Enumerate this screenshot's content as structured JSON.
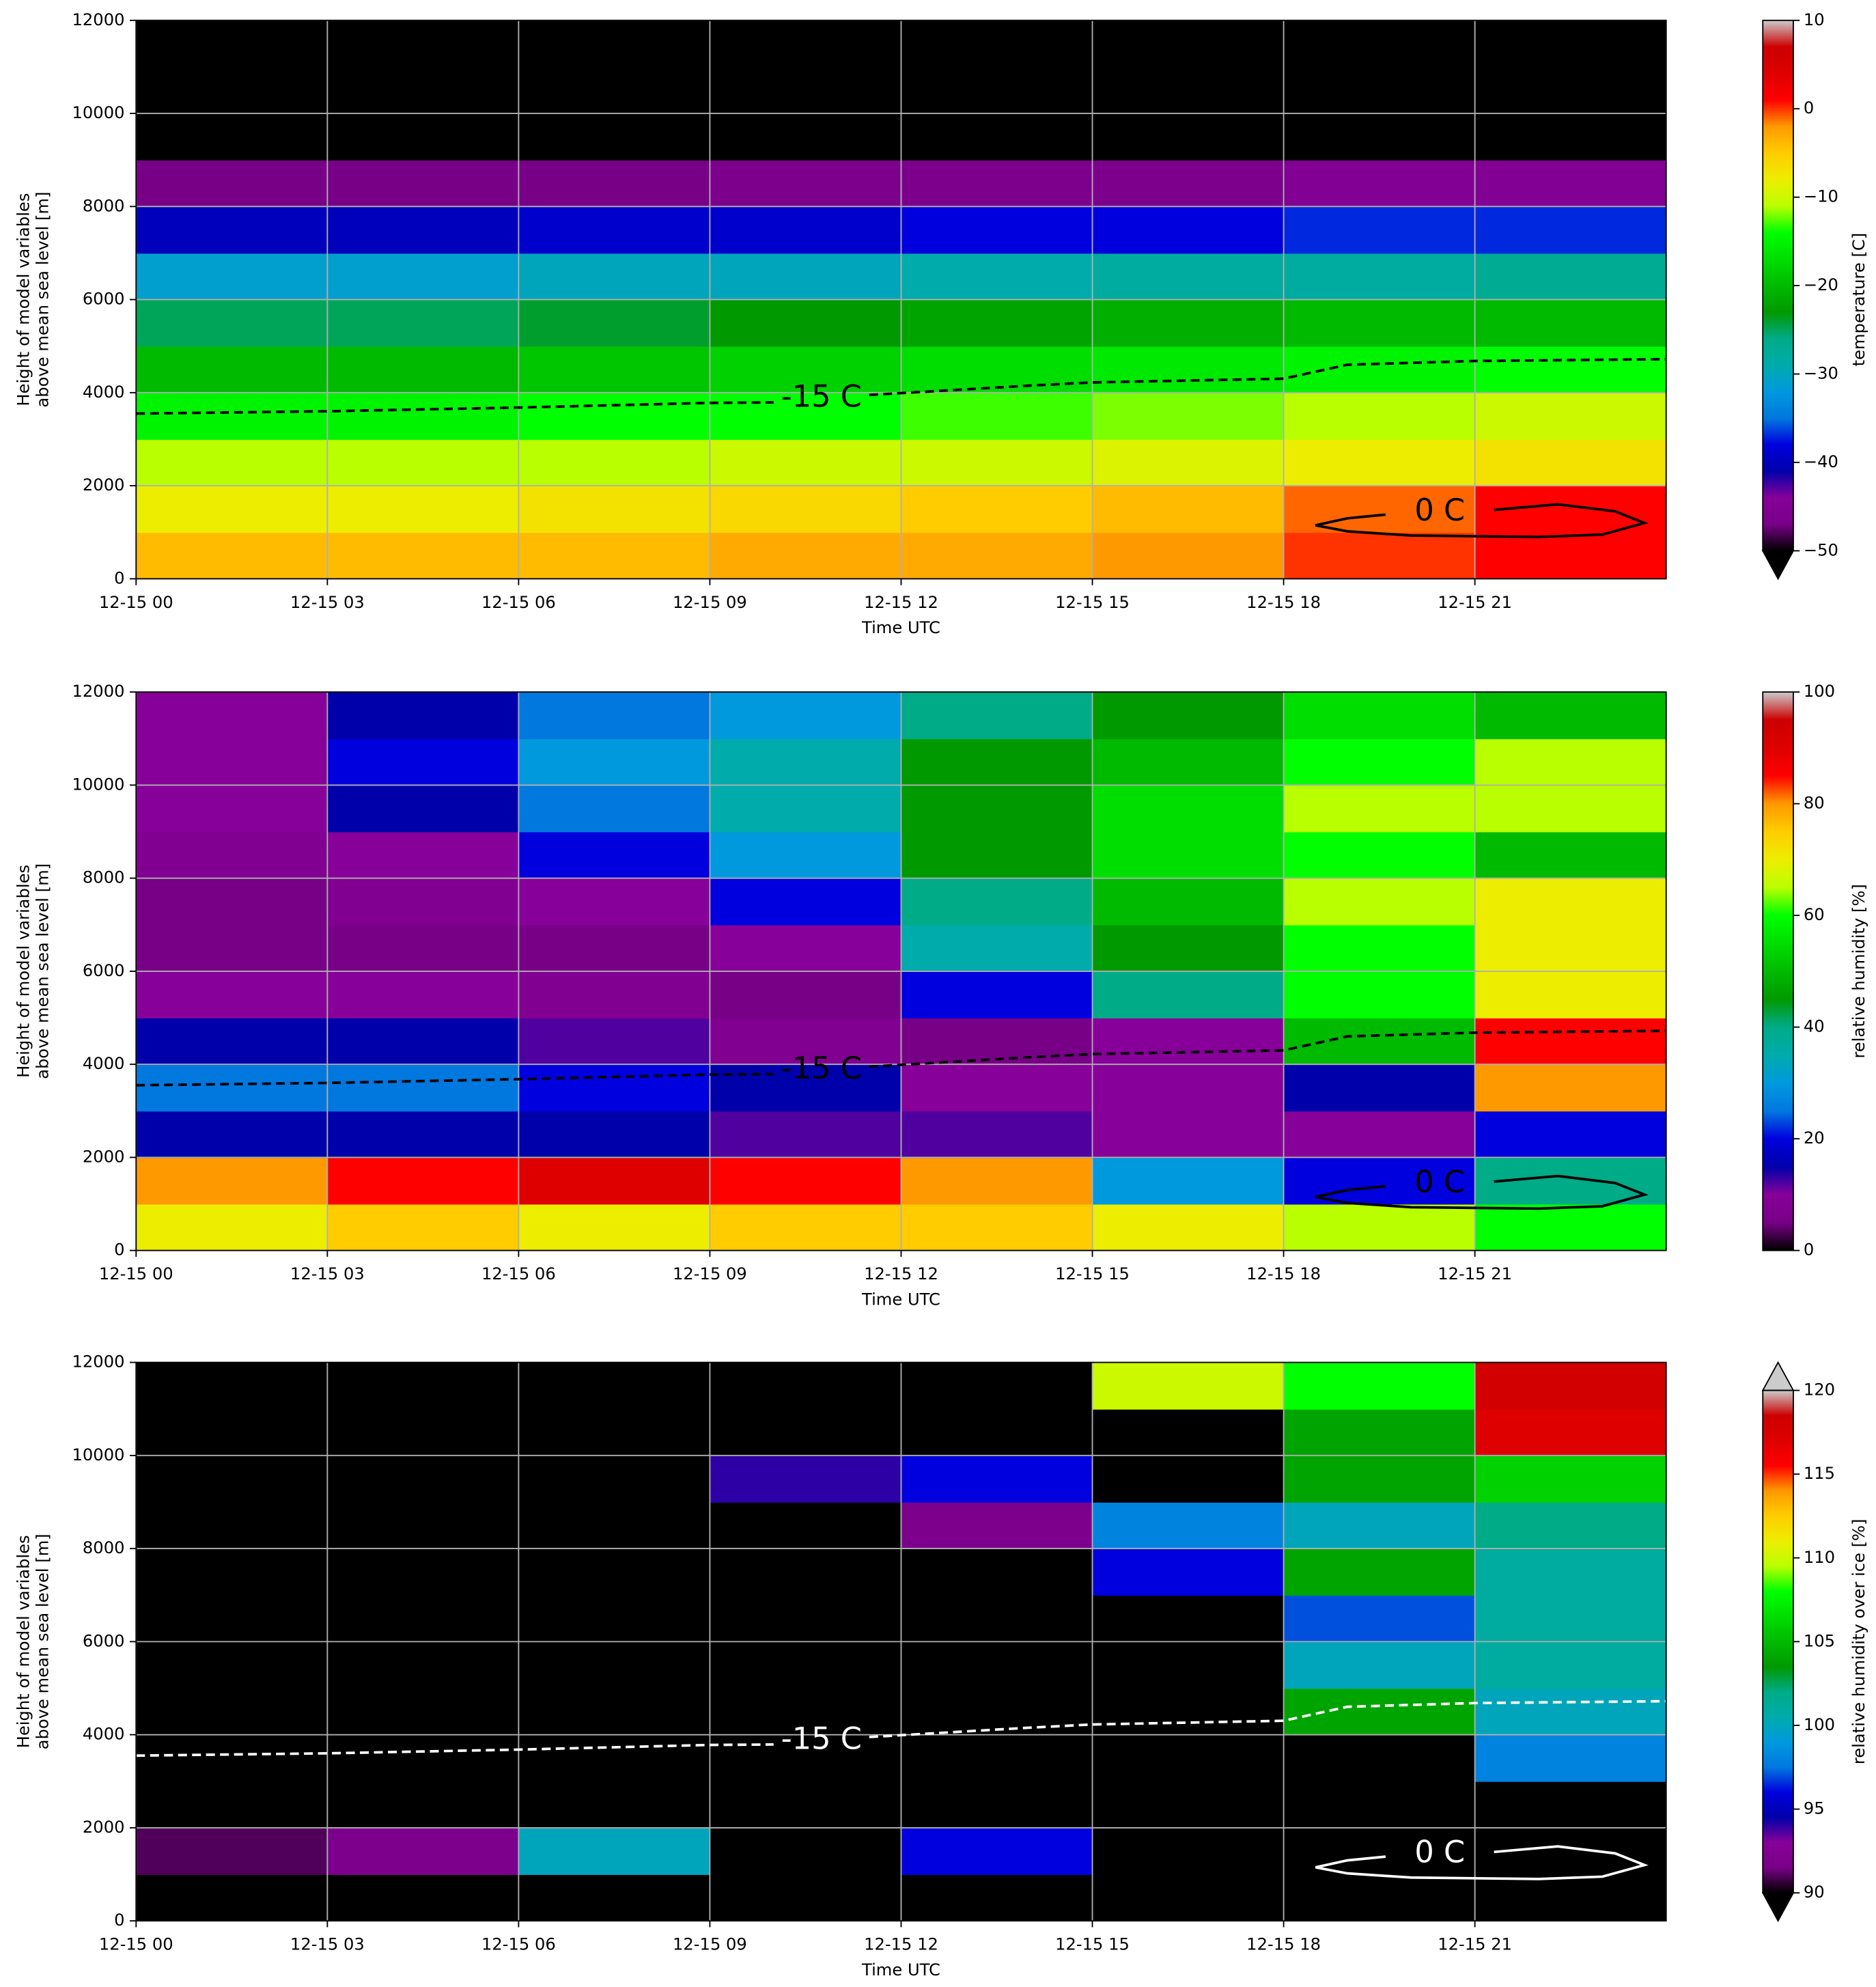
{
  "chart_data": [
    {
      "type": "heatmap",
      "xlabel": "Time UTC",
      "ylabel": [
        "Height of model variables",
        "above mean sea level [m]"
      ],
      "xlim": [
        0,
        24
      ],
      "ylim": [
        0,
        12000
      ],
      "xticks": [
        {
          "value": 0,
          "label": "12-15 00"
        },
        {
          "value": 3,
          "label": "12-15 03"
        },
        {
          "value": 6,
          "label": "12-15 06"
        },
        {
          "value": 9,
          "label": "12-15 09"
        },
        {
          "value": 12,
          "label": "12-15 12"
        },
        {
          "value": 15,
          "label": "12-15 15"
        },
        {
          "value": 18,
          "label": "12-15 18"
        },
        {
          "value": 21,
          "label": "12-15 21"
        }
      ],
      "yticks": [
        0,
        2000,
        4000,
        6000,
        8000,
        10000,
        12000
      ],
      "grid": true,
      "x": [
        1.5,
        4.5,
        7.5,
        10.5,
        13.5,
        16.5,
        19.5,
        22.5
      ],
      "y": [
        500,
        1500,
        2500,
        3500,
        4500,
        5500,
        6500,
        7500,
        8500,
        9500,
        10500,
        11500
      ],
      "z": [
        [
          -4,
          -4,
          -4,
          -3,
          -3,
          -2,
          0,
          1
        ],
        [
          -8,
          -8,
          -7,
          -6,
          -5,
          -4,
          -1,
          1
        ],
        [
          -11,
          -11,
          -11,
          -10,
          -10,
          -9,
          -8,
          -7
        ],
        [
          -15,
          -15,
          -14,
          -14,
          -13,
          -12,
          -11,
          -10
        ],
        [
          -20,
          -20,
          -19,
          -18,
          -17,
          -16,
          -15,
          -14
        ],
        [
          -25,
          -25,
          -24,
          -23,
          -22,
          -21,
          -20,
          -20
        ],
        [
          -31,
          -31,
          -30,
          -30,
          -29,
          -28,
          -28,
          -27
        ],
        [
          -40,
          -40,
          -39,
          -39,
          -38,
          -38,
          -37,
          -37
        ],
        [
          -47,
          -47,
          -47,
          -46,
          -46,
          -46,
          -45,
          -45
        ],
        [
          -60,
          -60,
          -60,
          -60,
          -60,
          -60,
          -60,
          -60
        ],
        [
          -60,
          -60,
          -60,
          -60,
          -60,
          -60,
          -60,
          -60
        ],
        [
          -60,
          -60,
          -60,
          -60,
          -60,
          -60,
          -60,
          -60
        ]
      ],
      "colormap": "nipy_spectral",
      "colorbar": {
        "label": "temperature [C]",
        "lim": [
          -50,
          10
        ],
        "extend": "min",
        "under_color": "#000000",
        "over_color": "#cccccc",
        "ticks": [
          10,
          0,
          {
            "value": -10,
            "label": "−10"
          },
          {
            "value": -20,
            "label": "−20"
          },
          {
            "value": -30,
            "label": "−30"
          },
          {
            "value": -40,
            "label": "−40"
          },
          {
            "value": -50,
            "label": "−50"
          }
        ]
      },
      "contours": [
        {
          "label": "-15 C",
          "color": "#000000",
          "dashed": true,
          "x": [
            0,
            3,
            6,
            9,
            10,
            null,
            11.5,
            14,
            15,
            18,
            19,
            21,
            24
          ],
          "y": [
            3550,
            3600,
            3680,
            3780,
            3790,
            null,
            3950,
            4150,
            4220,
            4300,
            4600,
            4680,
            4720
          ]
        },
        {
          "label": "0 C",
          "color": "#000000",
          "dashed": false,
          "x": [
            21.3,
            22.3,
            23.2,
            23.66,
            23,
            22,
            20,
            19,
            18.5,
            19,
            19.6
          ],
          "y": [
            1480,
            1600,
            1450,
            1200,
            950,
            900,
            930,
            1020,
            1150,
            1300,
            1380
          ]
        }
      ]
    },
    {
      "type": "heatmap",
      "xlabel": "Time UTC",
      "ylabel": [
        "Height of model variables",
        "above mean sea level [m]"
      ],
      "xlim": [
        0,
        24
      ],
      "ylim": [
        0,
        12000
      ],
      "xticks": [
        {
          "value": 0,
          "label": "12-15 00"
        },
        {
          "value": 3,
          "label": "12-15 03"
        },
        {
          "value": 6,
          "label": "12-15 06"
        },
        {
          "value": 9,
          "label": "12-15 09"
        },
        {
          "value": 12,
          "label": "12-15 12"
        },
        {
          "value": 15,
          "label": "12-15 15"
        },
        {
          "value": 18,
          "label": "12-15 18"
        },
        {
          "value": 21,
          "label": "12-15 21"
        }
      ],
      "yticks": [
        0,
        2000,
        4000,
        6000,
        8000,
        10000,
        12000
      ],
      "grid": true,
      "x": [
        1.5,
        4.5,
        7.5,
        10.5,
        13.5,
        16.5,
        19.5,
        22.5
      ],
      "y": [
        500,
        1500,
        2500,
        3500,
        4500,
        5500,
        6500,
        7500,
        8500,
        9500,
        10500,
        11500
      ],
      "z": [
        [
          70,
          75,
          70,
          75,
          75,
          70,
          65,
          60
        ],
        [
          80,
          85,
          90,
          85,
          80,
          30,
          20,
          40
        ],
        [
          15,
          15,
          15,
          12,
          12,
          10,
          10,
          20
        ],
        [
          25,
          25,
          20,
          15,
          10,
          10,
          15,
          80
        ],
        [
          15,
          15,
          12,
          8,
          5,
          10,
          50,
          85
        ],
        [
          10,
          10,
          8,
          5,
          20,
          40,
          60,
          70
        ],
        [
          5,
          5,
          5,
          10,
          35,
          45,
          60,
          70
        ],
        [
          5,
          8,
          10,
          20,
          40,
          50,
          65,
          70
        ],
        [
          8,
          10,
          20,
          30,
          45,
          55,
          60,
          50
        ],
        [
          10,
          15,
          25,
          35,
          45,
          55,
          65,
          65
        ],
        [
          10,
          20,
          30,
          35,
          45,
          50,
          60,
          65
        ],
        [
          10,
          15,
          25,
          30,
          40,
          45,
          55,
          50
        ]
      ],
      "colormap": "nipy_spectral",
      "colorbar": {
        "label": "relative humidity [%]",
        "lim": [
          0,
          100
        ],
        "extend": "neither",
        "under_color": "#000000",
        "over_color": "#cccccc",
        "ticks": [
          100,
          80,
          60,
          40,
          20,
          0
        ]
      },
      "contours": [
        {
          "label": "-15 C",
          "color": "#000000",
          "dashed": true,
          "x": [
            0,
            3,
            6,
            9,
            10,
            null,
            11.5,
            14,
            15,
            18,
            19,
            21,
            24
          ],
          "y": [
            3550,
            3600,
            3680,
            3780,
            3790,
            null,
            3950,
            4150,
            4220,
            4300,
            4600,
            4680,
            4720
          ]
        },
        {
          "label": "0 C",
          "color": "#000000",
          "dashed": false,
          "x": [
            21.3,
            22.3,
            23.2,
            23.66,
            23,
            22,
            20,
            19,
            18.5,
            19,
            19.6
          ],
          "y": [
            1480,
            1600,
            1450,
            1200,
            950,
            900,
            930,
            1020,
            1150,
            1300,
            1380
          ]
        }
      ]
    },
    {
      "type": "heatmap",
      "xlabel": "Time UTC",
      "ylabel": [
        "Height of model variables",
        "above mean sea level [m]"
      ],
      "xlim": [
        0,
        24
      ],
      "ylim": [
        0,
        12000
      ],
      "xticks": [
        {
          "value": 0,
          "label": "12-15 00"
        },
        {
          "value": 3,
          "label": "12-15 03"
        },
        {
          "value": 6,
          "label": "12-15 06"
        },
        {
          "value": 9,
          "label": "12-15 09"
        },
        {
          "value": 12,
          "label": "12-15 12"
        },
        {
          "value": 15,
          "label": "12-15 15"
        },
        {
          "value": 18,
          "label": "12-15 18"
        },
        {
          "value": 21,
          "label": "12-15 21"
        }
      ],
      "yticks": [
        0,
        2000,
        4000,
        6000,
        8000,
        10000,
        12000
      ],
      "grid": true,
      "x": [
        1.5,
        4.5,
        7.5,
        10.5,
        13.5,
        16.5,
        19.5,
        22.5
      ],
      "y": [
        500,
        1500,
        2500,
        3500,
        4500,
        5500,
        6500,
        7500,
        8500,
        9500,
        10500,
        11500
      ],
      "z": [
        [
          80,
          80,
          80,
          80,
          80,
          80,
          80,
          80
        ],
        [
          91,
          92,
          100,
          80,
          96,
          80,
          80,
          80
        ],
        [
          80,
          80,
          80,
          80,
          80,
          80,
          80,
          80
        ],
        [
          80,
          80,
          80,
          80,
          80,
          80,
          80,
          98
        ],
        [
          80,
          80,
          80,
          80,
          80,
          80,
          104,
          100
        ],
        [
          80,
          80,
          80,
          80,
          80,
          80,
          100,
          101
        ],
        [
          80,
          80,
          80,
          80,
          80,
          80,
          97,
          101
        ],
        [
          80,
          80,
          80,
          80,
          80,
          96,
          104,
          101
        ],
        [
          80,
          80,
          80,
          80,
          92,
          98,
          100,
          102
        ],
        [
          80,
          80,
          80,
          94,
          96,
          80,
          104,
          106
        ],
        [
          80,
          80,
          80,
          80,
          80,
          80,
          104,
          117
        ],
        [
          80,
          80,
          80,
          80,
          80,
          110,
          108,
          118
        ]
      ],
      "colormap": "nipy_spectral",
      "colorbar": {
        "label": "relative humidity over ice [%]",
        "lim": [
          90,
          120
        ],
        "extend": "both",
        "under_color": "#000000",
        "over_color": "#cccccc",
        "ticks": [
          120,
          115,
          110,
          105,
          100,
          95,
          90
        ]
      },
      "contours": [
        {
          "label": "-15 C",
          "color": "#ffffff",
          "dashed": true,
          "x": [
            0,
            3,
            6,
            9,
            10,
            null,
            11.5,
            14,
            15,
            18,
            19,
            21,
            24
          ],
          "y": [
            3550,
            3600,
            3680,
            3780,
            3790,
            null,
            3950,
            4150,
            4220,
            4300,
            4600,
            4680,
            4720
          ]
        },
        {
          "label": "0 C",
          "color": "#ffffff",
          "dashed": false,
          "x": [
            21.3,
            22.3,
            23.2,
            23.66,
            23,
            22,
            20,
            19,
            18.5,
            19,
            19.6
          ],
          "y": [
            1480,
            1600,
            1450,
            1200,
            950,
            900,
            930,
            1020,
            1150,
            1300,
            1380
          ]
        }
      ]
    }
  ]
}
